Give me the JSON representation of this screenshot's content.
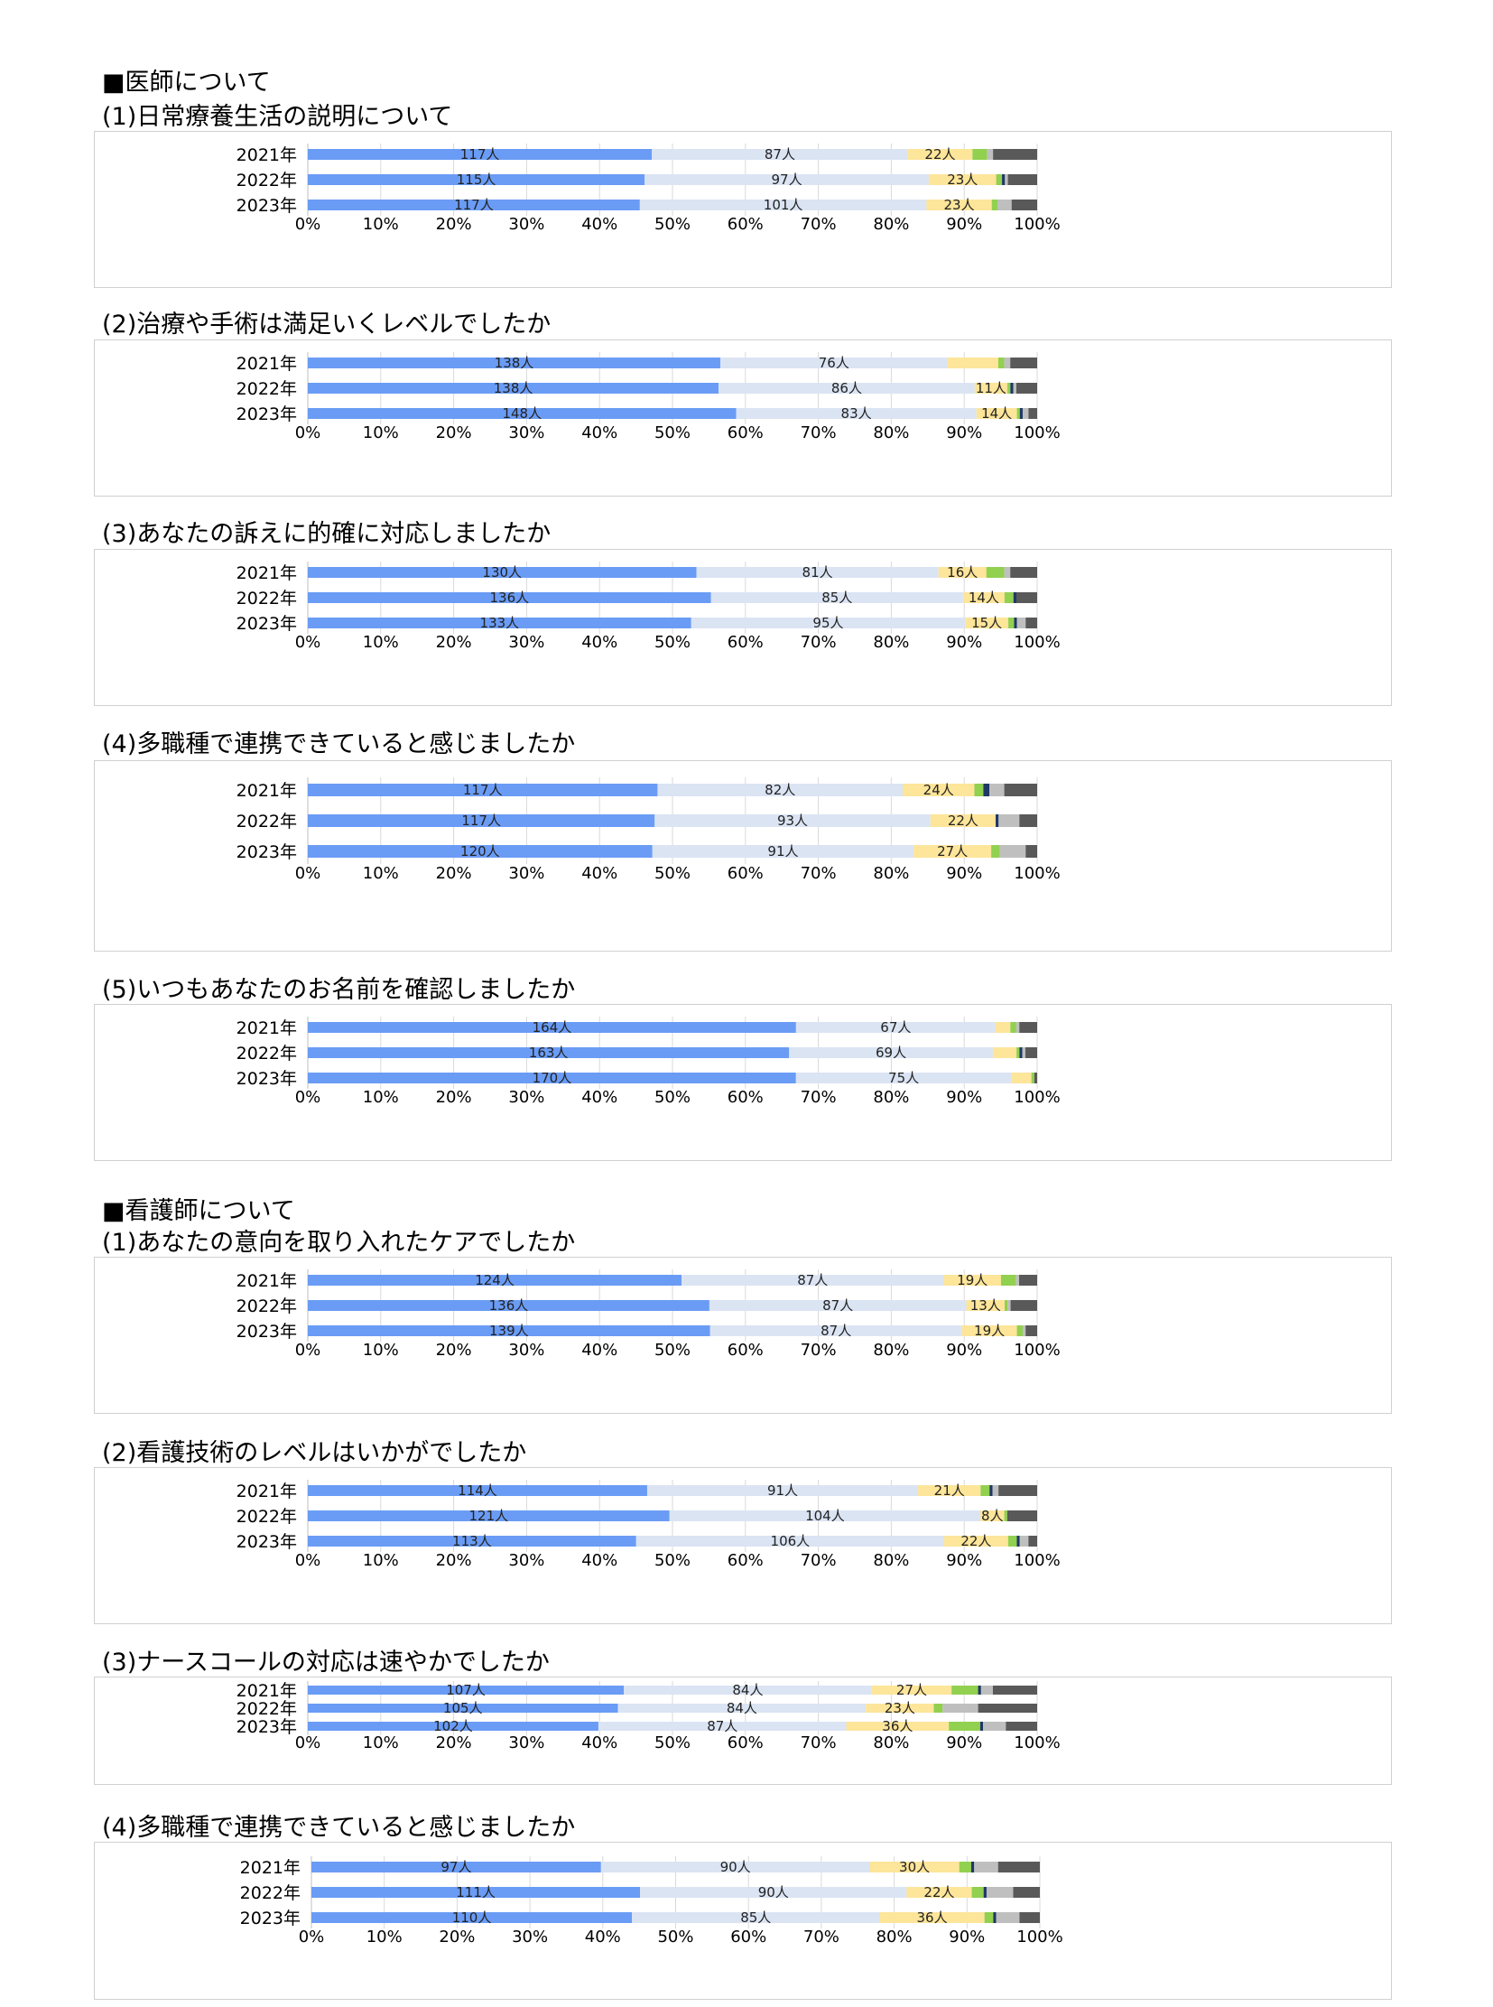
{
  "headings": [
    {
      "text": "■医師について"
    },
    {
      "text": "(1)日常療養生活の説明について"
    },
    {
      "text": "(2)治療や手術は満足いくレベルでしたか"
    },
    {
      "text": "(3)あなたの訴えに的確に対応しましたか"
    },
    {
      "text": "(4)多職種で連携できていると感じましたか"
    },
    {
      "text": "(5)いつもあなたのお名前を確認しましたか"
    },
    {
      "text": "■看護師について"
    },
    {
      "text": "(1)あなたの意向を取り入れたケアでしたか"
    },
    {
      "text": "(2)看護技術のレベルはいかがでしたか"
    },
    {
      "text": "(3)ナースコールの対応は速やかでしたか"
    },
    {
      "text": "(4)多職種で連携できていると感じましたか"
    }
  ],
  "colors": [
    "#6a9cf5",
    "#dbe4f3",
    "#fde59a",
    "#92d050",
    "#1f3864",
    "#bfbfbf",
    "#595959"
  ],
  "chart_data": [
    {
      "type": "bar",
      "orientation": "horizontal",
      "stacked": "percent",
      "categories": [
        "2021年",
        "2022年",
        "2023年"
      ],
      "xlim": [
        0,
        100
      ],
      "xticks": [
        "0%",
        "10%",
        "20%",
        "30%",
        "40%",
        "50%",
        "60%",
        "70%",
        "80%",
        "90%",
        "100%"
      ],
      "series_values": [
        [
          117,
          115,
          117
        ],
        [
          87,
          97,
          101
        ],
        [
          22,
          23,
          23
        ],
        [
          5,
          2,
          2
        ],
        [
          0,
          1,
          0
        ],
        [
          2,
          1,
          5
        ],
        [
          15,
          10,
          9
        ]
      ],
      "labels": [
        [
          "117人",
          "115人",
          "117人"
        ],
        [
          "87人",
          "97人",
          "101人"
        ],
        [
          "22人",
          "23人",
          "23人"
        ]
      ]
    },
    {
      "type": "bar",
      "orientation": "horizontal",
      "stacked": "percent",
      "categories": [
        "2021年",
        "2022年",
        "2023年"
      ],
      "xlim": [
        0,
        100
      ],
      "xticks": [
        "0%",
        "10%",
        "20%",
        "30%",
        "40%",
        "50%",
        "60%",
        "70%",
        "80%",
        "90%",
        "100%"
      ],
      "series_values": [
        [
          138,
          138,
          148
        ],
        [
          76,
          86,
          83
        ],
        [
          17,
          11,
          14
        ],
        [
          2,
          1,
          1
        ],
        [
          0,
          1,
          1
        ],
        [
          2,
          1,
          2
        ],
        [
          9,
          7,
          3
        ]
      ],
      "labels": [
        [
          "138人",
          "138人",
          "148人"
        ],
        [
          "76人",
          "86人",
          "83人"
        ],
        [
          "",
          "11人",
          "14人"
        ]
      ]
    },
    {
      "type": "bar",
      "orientation": "horizontal",
      "stacked": "percent",
      "categories": [
        "2021年",
        "2022年",
        "2023年"
      ],
      "xlim": [
        0,
        100
      ],
      "xticks": [
        "0%",
        "10%",
        "20%",
        "30%",
        "40%",
        "50%",
        "60%",
        "70%",
        "80%",
        "90%",
        "100%"
      ],
      "series_values": [
        [
          130,
          136,
          133
        ],
        [
          81,
          85,
          95
        ],
        [
          16,
          14,
          15
        ],
        [
          6,
          3,
          2
        ],
        [
          0,
          1,
          1
        ],
        [
          2,
          0,
          3
        ],
        [
          9,
          7,
          4
        ]
      ],
      "labels": [
        [
          "130人",
          "136人",
          "133人"
        ],
        [
          "81人",
          "85人",
          "95人"
        ],
        [
          "16人",
          "14人",
          "15人"
        ]
      ]
    },
    {
      "type": "bar",
      "orientation": "horizontal",
      "stacked": "percent",
      "categories": [
        "2021年",
        "2022年",
        "2023年"
      ],
      "xlim": [
        0,
        100
      ],
      "xticks": [
        "0%",
        "10%",
        "20%",
        "30%",
        "40%",
        "50%",
        "60%",
        "70%",
        "80%",
        "90%",
        "100%"
      ],
      "series_values": [
        [
          117,
          117,
          120
        ],
        [
          82,
          93,
          91
        ],
        [
          24,
          22,
          27
        ],
        [
          3,
          0,
          3
        ],
        [
          2,
          1,
          0
        ],
        [
          5,
          7,
          9
        ],
        [
          11,
          6,
          4
        ]
      ],
      "labels": [
        [
          "117人",
          "117人",
          "120人"
        ],
        [
          "82人",
          "93人",
          "91人"
        ],
        [
          "24人",
          "22人",
          "27人"
        ]
      ]
    },
    {
      "type": "bar",
      "orientation": "horizontal",
      "stacked": "percent",
      "categories": [
        "2021年",
        "2022年",
        "2023年"
      ],
      "xlim": [
        0,
        100
      ],
      "xticks": [
        "0%",
        "10%",
        "20%",
        "30%",
        "40%",
        "50%",
        "60%",
        "70%",
        "80%",
        "90%",
        "100%"
      ],
      "series_values": [
        [
          164,
          163,
          170
        ],
        [
          67,
          69,
          75
        ],
        [
          5,
          8,
          7
        ],
        [
          2,
          1,
          1
        ],
        [
          0,
          1,
          0
        ],
        [
          1,
          1,
          0
        ],
        [
          6,
          4,
          1
        ]
      ],
      "labels": [
        [
          "164人",
          "163人",
          "170人"
        ],
        [
          "67人",
          "69人",
          "75人"
        ],
        [
          "",
          "",
          ""
        ]
      ]
    },
    {
      "type": "bar",
      "orientation": "horizontal",
      "stacked": "percent",
      "categories": [
        "2021年",
        "2022年",
        "2023年"
      ],
      "xlim": [
        0,
        100
      ],
      "xticks": [
        "0%",
        "10%",
        "20%",
        "30%",
        "40%",
        "50%",
        "60%",
        "70%",
        "80%",
        "90%",
        "100%"
      ],
      "series_values": [
        [
          124,
          136,
          139
        ],
        [
          87,
          87,
          87
        ],
        [
          19,
          13,
          19
        ],
        [
          5,
          1,
          2
        ],
        [
          0,
          0,
          0
        ],
        [
          1,
          1,
          1
        ],
        [
          6,
          9,
          4
        ]
      ],
      "labels": [
        [
          "124人",
          "136人",
          "139人"
        ],
        [
          "87人",
          "87人",
          "87人"
        ],
        [
          "19人",
          "13人",
          "19人"
        ]
      ]
    },
    {
      "type": "bar",
      "orientation": "horizontal",
      "stacked": "percent",
      "categories": [
        "2021年",
        "2022年",
        "2023年"
      ],
      "xlim": [
        0,
        100
      ],
      "xticks": [
        "0%",
        "10%",
        "20%",
        "30%",
        "40%",
        "50%",
        "60%",
        "70%",
        "80%",
        "90%",
        "100%"
      ],
      "series_values": [
        [
          114,
          121,
          113
        ],
        [
          91,
          104,
          106
        ],
        [
          21,
          8,
          22
        ],
        [
          3,
          1,
          3
        ],
        [
          1,
          0,
          1
        ],
        [
          2,
          0,
          3
        ],
        [
          13,
          10,
          3
        ]
      ],
      "labels": [
        [
          "114人",
          "121人",
          "113人"
        ],
        [
          "91人",
          "104人",
          "106人"
        ],
        [
          "21人",
          "8人",
          "22人"
        ]
      ]
    },
    {
      "type": "bar",
      "orientation": "horizontal",
      "stacked": "percent",
      "categories": [
        "2021年",
        "2022年",
        "2023年"
      ],
      "xlim": [
        0,
        100
      ],
      "xticks": [
        "0%",
        "10%",
        "20%",
        "30%",
        "40%",
        "50%",
        "60%",
        "70%",
        "80%",
        "90%",
        "100%"
      ],
      "series_values": [
        [
          107,
          105,
          102
        ],
        [
          84,
          84,
          87
        ],
        [
          27,
          23,
          36
        ],
        [
          9,
          3,
          11
        ],
        [
          1,
          0,
          1
        ],
        [
          4,
          12,
          8
        ],
        [
          15,
          20,
          11
        ]
      ],
      "labels": [
        [
          "107人",
          "105人",
          "102人"
        ],
        [
          "84人",
          "84人",
          "87人"
        ],
        [
          "27人",
          "23人",
          "36人"
        ]
      ]
    },
    {
      "type": "bar",
      "orientation": "horizontal",
      "stacked": "percent",
      "categories": [
        "2021年",
        "2022年",
        "2023年"
      ],
      "xlim": [
        0,
        100
      ],
      "xticks": [
        "0%",
        "10%",
        "20%",
        "30%",
        "40%",
        "50%",
        "60%",
        "70%",
        "80%",
        "90%",
        "100%"
      ],
      "series_values": [
        [
          97,
          111,
          110
        ],
        [
          90,
          90,
          85
        ],
        [
          30,
          22,
          36
        ],
        [
          4,
          4,
          3
        ],
        [
          1,
          1,
          1
        ],
        [
          8,
          9,
          8
        ],
        [
          14,
          9,
          7
        ]
      ],
      "labels": [
        [
          "97人",
          "111人",
          "110人"
        ],
        [
          "90人",
          "90人",
          "85人"
        ],
        [
          "30人",
          "22人",
          "36人"
        ]
      ]
    }
  ]
}
